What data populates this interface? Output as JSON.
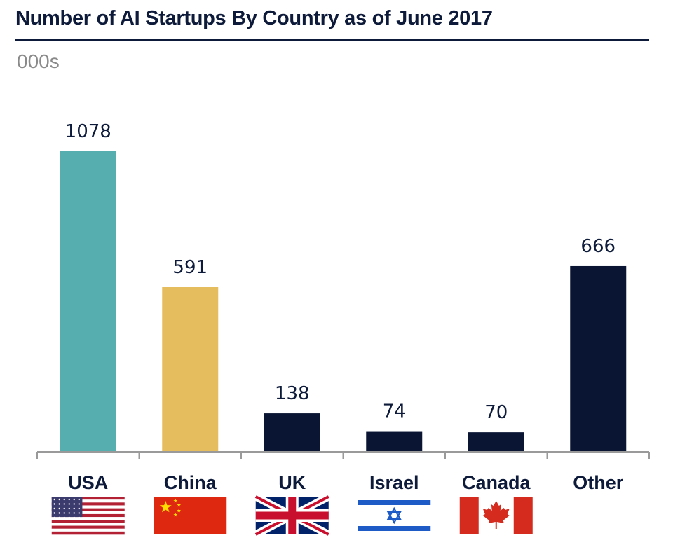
{
  "header": {
    "title": "Number of AI Startups By Country as of June 2017",
    "unit_label": "000s"
  },
  "colors": {
    "title": "#0d1a3a",
    "axis": "#9a9a9a",
    "usa_bar": "#56aeae",
    "china_bar": "#e6bd5e",
    "dark_bar": "#0a1533"
  },
  "chart_data": {
    "type": "bar",
    "title": "Number of AI Startups By Country as of June 2017",
    "subtitle": "000s",
    "xlabel": "",
    "ylabel": "",
    "categories": [
      "USA",
      "China",
      "UK",
      "Israel",
      "Canada",
      "Other"
    ],
    "values": [
      1078,
      591,
      138,
      74,
      70,
      666
    ],
    "data_labels": [
      "1078",
      "591",
      "138",
      "74",
      "70",
      "666"
    ],
    "bar_colors": [
      "#56aeae",
      "#e6bd5e",
      "#0a1533",
      "#0a1533",
      "#0a1533",
      "#0a1533"
    ],
    "category_icons": [
      "usa-flag-icon",
      "china-flag-icon",
      "uk-flag-icon",
      "israel-flag-icon",
      "canada-flag-icon",
      ""
    ],
    "ylim": [
      0,
      1078
    ],
    "grid": false,
    "legend": "none"
  }
}
